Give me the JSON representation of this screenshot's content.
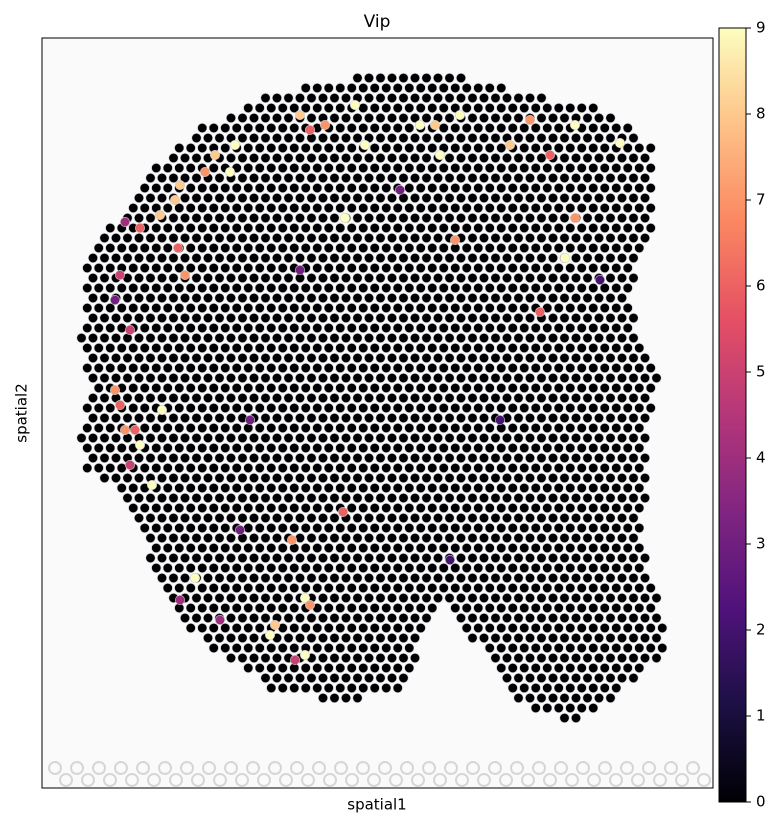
{
  "chart_data": {
    "type": "spatial_scatter",
    "title": "Vip",
    "x_label": "spatial1",
    "y_label": "spatial2",
    "xlim": [
      0,
      671
    ],
    "ylim": [
      750,
      0
    ],
    "colormap": [
      "#000004",
      "#1c1044",
      "#4f127b",
      "#812581",
      "#b5367a",
      "#e55064",
      "#fb8761",
      "#fec287",
      "#fcfdbf"
    ],
    "colorbar_lim": [
      0,
      9
    ],
    "colorbar_ticks": [
      0,
      1,
      2,
      3,
      4,
      5,
      6,
      7,
      8,
      9
    ],
    "x": [
      313,
      258,
      283,
      268,
      378,
      393,
      418,
      488,
      533,
      578,
      193,
      173,
      323,
      398,
      468,
      508,
      163,
      188,
      138,
      133,
      118,
      303,
      533,
      83,
      98,
      413,
      136,
      523,
      143,
      78,
      498,
      88,
      73,
      78,
      120,
      83,
      93,
      98,
      88,
      110,
      301,
      250,
      153,
      263,
      268,
      233,
      228,
      263,
      253,
      73,
      198,
      358,
      258,
      208,
      458,
      558,
      408,
      138,
      178
    ],
    "y": [
      67,
      77,
      87,
      92,
      87,
      87,
      77,
      82,
      87,
      105,
      107,
      117,
      107,
      117,
      107,
      117,
      134,
      134,
      147,
      162,
      177,
      180,
      180,
      184,
      190,
      202,
      210,
      220,
      237,
      237,
      274,
      292,
      352,
      367,
      372,
      392,
      392,
      407,
      427,
      447,
      474,
      502,
      540,
      560,
      567,
      587,
      597,
      617,
      622,
      262,
      492,
      152,
      232,
      382,
      382,
      242,
      522,
      562,
      582
    ],
    "values": [
      9,
      8,
      7,
      6,
      9,
      8,
      9,
      7,
      9,
      9,
      9,
      8,
      9,
      9,
      8,
      6,
      7,
      9,
      8,
      8,
      8,
      9,
      7,
      4,
      6,
      7,
      6,
      9,
      7,
      5,
      6,
      5,
      7,
      6,
      9,
      7,
      6,
      9,
      5,
      9,
      6,
      7,
      9,
      9,
      7,
      8,
      9,
      9,
      5,
      3,
      3,
      3,
      3,
      3,
      2,
      2,
      2,
      4,
      4
    ]
  }
}
